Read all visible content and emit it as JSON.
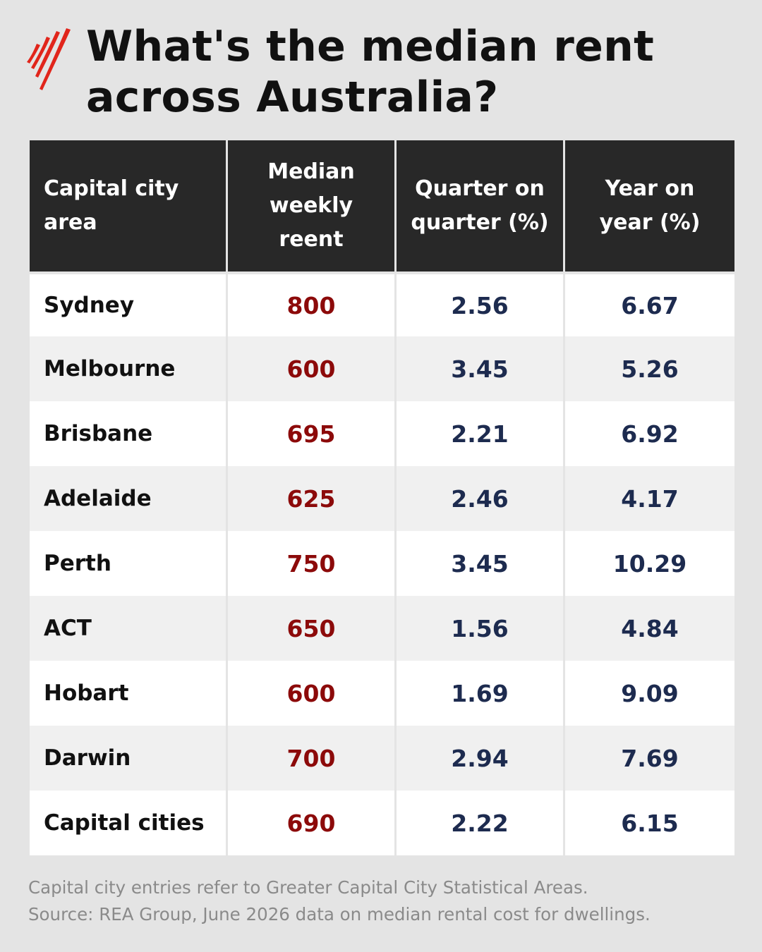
{
  "title": {
    "line1": "What's the median rent",
    "line2": "across Australia?"
  },
  "logo_icon": "sbs-red-logo-icon",
  "colors": {
    "background": "#e4e4e4",
    "header_bg": "#282828",
    "rent_value": "#8c0a0a",
    "percent_value": "#1d2b4f",
    "logo_red": "#e1251b"
  },
  "table": {
    "headers": [
      [
        "Capital city",
        "area"
      ],
      [
        "Median",
        "weekly",
        "reent"
      ],
      [
        "Quarter on",
        "quarter (%)"
      ],
      [
        "Year on",
        "year (%)"
      ]
    ],
    "rows": [
      {
        "city": "Sydney",
        "rent": "800",
        "qoq": "2.56",
        "yoy": "6.67"
      },
      {
        "city": "Melbourne",
        "rent": "600",
        "qoq": "3.45",
        "yoy": "5.26"
      },
      {
        "city": "Brisbane",
        "rent": "695",
        "qoq": "2.21",
        "yoy": "6.92"
      },
      {
        "city": "Adelaide",
        "rent": "625",
        "qoq": "2.46",
        "yoy": "4.17"
      },
      {
        "city": "Perth",
        "rent": "750",
        "qoq": "3.45",
        "yoy": "10.29"
      },
      {
        "city": "ACT",
        "rent": "650",
        "qoq": "1.56",
        "yoy": "4.84"
      },
      {
        "city": "Hobart",
        "rent": "600",
        "qoq": "1.69",
        "yoy": "9.09"
      },
      {
        "city": "Darwin",
        "rent": "700",
        "qoq": "2.94",
        "yoy": "7.69"
      },
      {
        "city": "Capital cities",
        "rent": "690",
        "qoq": "2.22",
        "yoy": "6.15"
      }
    ]
  },
  "footnote": {
    "line1": "Capital city entries refer to Greater Capital City Statistical Areas.",
    "line2": "Source: REA Group, June 2026 data on median rental cost for dwellings."
  }
}
